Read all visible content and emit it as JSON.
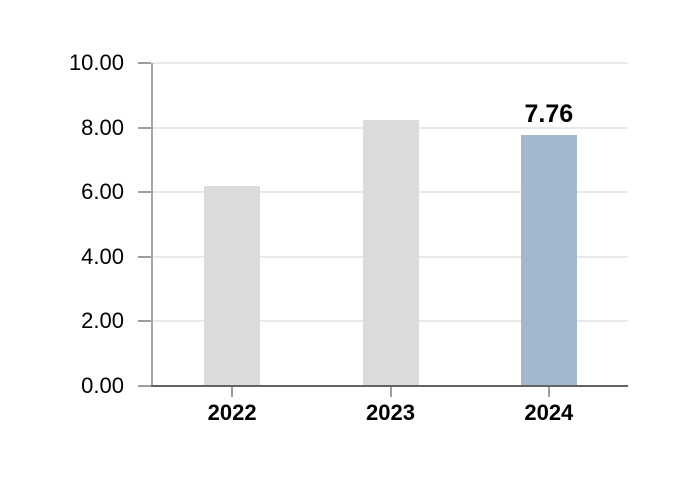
{
  "chart_data": {
    "type": "bar",
    "categories": [
      "2022",
      "2023",
      "2024"
    ],
    "values": [
      6.18,
      8.23,
      7.76
    ],
    "data_labels": [
      "",
      "",
      "7.76"
    ],
    "bar_colors": [
      "#dbdbdb",
      "#dbdbdb",
      "#a4b8cd"
    ],
    "y_tick_labels": [
      "0.00",
      "2.00",
      "4.00",
      "6.00",
      "8.00",
      "10.00"
    ],
    "y_tick_values": [
      0,
      2,
      4,
      6,
      8,
      10
    ],
    "ylim": [
      0,
      10
    ],
    "grid": true,
    "legend_position": "none",
    "xlabel": "",
    "ylabel": ""
  },
  "style_colors": {
    "bar_default": "#dbdbdb",
    "bar_highlight": "#a4b8cd",
    "gridline": "#e9e9e9",
    "y_axis_line": "#a6a6a6",
    "x_axis_line": "#636363",
    "tick_mark": "#9e9e9e",
    "text": "#000000",
    "background": "#ffffff"
  }
}
